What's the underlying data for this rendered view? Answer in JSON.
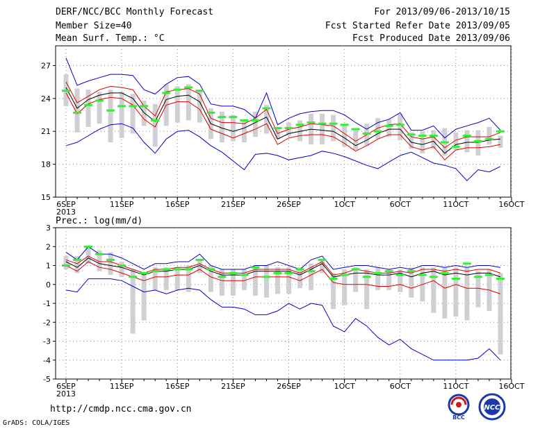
{
  "header": {
    "title": "DERF/NCC/BCC Monthly Forecast",
    "member_size": "Member Size=40",
    "variable1": "Mean Surf. Temp.: °C",
    "period": "For 2013/09/06-2013/10/15",
    "started": "Fcst Started Refer Date 2013/09/05",
    "produced": "Fcst Produced Date 2013/09/06"
  },
  "footer": {
    "url": "http://cmdp.ncc.cma.gov.cn",
    "credit": "GrADS: COLA/IGES",
    "logo1_text": "BCC",
    "logo2_text": "NCC"
  },
  "colors": {
    "envelope": "#0000cc",
    "spread": "#dd0000",
    "mean": "#000000",
    "member_box": "#d0d0d4",
    "marker": "#33ee33"
  },
  "chart_data": [
    {
      "type": "line",
      "title": "Mean Surf. Temp.: °C",
      "year_label": "2013",
      "x_tick_labels": [
        "6SEP",
        "11SEP",
        "16SEP",
        "21SEP",
        "26SEP",
        "1OCT",
        "6OCT",
        "11OCT",
        "16OCT"
      ],
      "y_ticks": [
        15,
        18,
        21,
        24,
        27
      ],
      "ylim": [
        15,
        28.8
      ],
      "days": 40,
      "series": [
        {
          "name": "upper envelope",
          "values": [
            27.7,
            25.2,
            25.6,
            25.9,
            26.2,
            26.2,
            26.1,
            24.8,
            24.4,
            25.3,
            25.9,
            26.0,
            25.3,
            23.5,
            23.3,
            23.3,
            23.0,
            22.2,
            24.5,
            21.6,
            22.2,
            22.6,
            22.8,
            22.9,
            22.9,
            22.5,
            21.8,
            21.2,
            21.8,
            22.1,
            22.7,
            21.1,
            21.1,
            21.5,
            20.4,
            21.2,
            21.5,
            21.8,
            22.2,
            21.1
          ]
        },
        {
          "name": "upper spread",
          "values": [
            25.5,
            23.6,
            24.2,
            24.8,
            25.1,
            25.0,
            24.8,
            23.3,
            22.4,
            24.6,
            24.8,
            24.9,
            24.4,
            22.2,
            21.8,
            21.8,
            21.7,
            22.2,
            23.0,
            20.8,
            21.2,
            21.4,
            21.7,
            21.6,
            21.5,
            20.8,
            20.1,
            20.7,
            21.3,
            21.6,
            21.7,
            20.5,
            20.3,
            20.5,
            19.5,
            20.2,
            20.5,
            20.5,
            20.5,
            20.9
          ]
        },
        {
          "name": "ensemble mean",
          "values": [
            25.0,
            23.1,
            23.9,
            24.3,
            24.5,
            24.5,
            24.0,
            22.7,
            21.9,
            23.9,
            24.2,
            24.3,
            23.7,
            21.7,
            21.3,
            21.0,
            21.3,
            21.8,
            22.3,
            20.3,
            20.8,
            21.0,
            21.2,
            21.1,
            21.0,
            20.4,
            19.7,
            20.2,
            20.8,
            21.2,
            21.2,
            20.0,
            19.8,
            20.1,
            19.0,
            19.8,
            20.0,
            20.0,
            20.2,
            20.3
          ]
        },
        {
          "name": "lower spread",
          "values": [
            24.5,
            22.6,
            23.5,
            23.9,
            24.1,
            24.0,
            23.4,
            22.1,
            21.4,
            23.4,
            23.7,
            23.7,
            23.0,
            21.2,
            20.8,
            20.4,
            20.8,
            21.2,
            21.7,
            19.8,
            20.4,
            20.6,
            20.7,
            20.7,
            20.5,
            19.9,
            19.2,
            19.7,
            20.3,
            20.7,
            20.7,
            19.6,
            19.3,
            19.6,
            18.4,
            19.3,
            19.5,
            19.5,
            19.6,
            19.8
          ]
        },
        {
          "name": "lower envelope",
          "values": [
            19.7,
            20.0,
            20.6,
            21.2,
            21.6,
            21.7,
            21.3,
            20.0,
            19.0,
            20.3,
            21.0,
            21.1,
            20.5,
            19.7,
            19.1,
            18.3,
            17.5,
            18.9,
            19.0,
            18.8,
            18.4,
            18.6,
            18.8,
            19.2,
            19.0,
            18.7,
            18.3,
            17.9,
            17.6,
            18.2,
            18.8,
            19.1,
            18.6,
            18.1,
            17.9,
            17.6,
            16.5,
            17.5,
            17.3,
            17.8
          ]
        },
        {
          "name": "ensemble markers",
          "values": [
            24.7,
            22.7,
            23.4,
            23.8,
            22.9,
            23.3,
            23.3,
            23.3,
            22.0,
            24.5,
            24.8,
            25.0,
            24.7,
            22.7,
            22.3,
            22.3,
            22.0,
            22.0,
            23.1,
            21.3,
            21.3,
            21.6,
            21.8,
            21.7,
            21.7,
            21.6,
            21.2,
            20.8,
            21.0,
            21.5,
            21.6,
            20.7,
            20.6,
            20.6,
            20.0,
            19.6,
            20.6,
            20.1,
            20.3,
            21.0
          ]
        }
      ],
      "box_ranges": [
        [
          23.3,
          26.2
        ],
        [
          20.9,
          24.9
        ],
        [
          21.4,
          24.8
        ],
        [
          21.7,
          24.6
        ],
        [
          20.0,
          24.8
        ],
        [
          20.4,
          24.6
        ],
        [
          20.8,
          24.4
        ],
        [
          21.5,
          23.8
        ],
        [
          19.6,
          23.5
        ],
        [
          21.5,
          25.3
        ],
        [
          21.8,
          25.1
        ],
        [
          22.0,
          25.3
        ],
        [
          21.8,
          24.8
        ],
        [
          20.3,
          23.1
        ],
        [
          20.0,
          22.8
        ],
        [
          20.1,
          22.5
        ],
        [
          20.0,
          22.0
        ],
        [
          20.5,
          22.8
        ],
        [
          20.8,
          23.4
        ],
        [
          20.3,
          21.3
        ],
        [
          20.6,
          21.8
        ],
        [
          20.1,
          22.0
        ],
        [
          19.8,
          22.6
        ],
        [
          19.8,
          22.6
        ],
        [
          20.1,
          22.5
        ],
        [
          19.6,
          21.6
        ],
        [
          19.3,
          21.1
        ],
        [
          19.7,
          21.7
        ],
        [
          20.3,
          22.2
        ],
        [
          20.5,
          22.1
        ],
        [
          20.2,
          22.6
        ],
        [
          19.4,
          20.9
        ],
        [
          19.0,
          21.0
        ],
        [
          19.4,
          21.1
        ],
        [
          18.8,
          21.3
        ],
        [
          19.3,
          20.9
        ],
        [
          19.1,
          21.1
        ],
        [
          18.8,
          21.1
        ],
        [
          19.8,
          21.4
        ],
        [
          19.5,
          20.6
        ]
      ]
    },
    {
      "type": "line",
      "title": "Prec.: log(mm/d)",
      "year_label": "2013",
      "x_tick_labels": [
        "6SEP",
        "11SEP",
        "16SEP",
        "21SEP",
        "26SEP",
        "1OCT",
        "6OCT",
        "11OCT",
        "16OCT"
      ],
      "y_ticks": [
        -5,
        -4,
        -3,
        -2,
        -1,
        0,
        1,
        2,
        3
      ],
      "ylim": [
        -5,
        3
      ],
      "days": 40,
      "series": [
        {
          "name": "upper envelope",
          "values": [
            1.7,
            1.3,
            2.0,
            1.6,
            1.6,
            1.4,
            1.1,
            0.8,
            1.1,
            1.1,
            1.2,
            1.2,
            1.6,
            1.0,
            0.8,
            0.8,
            0.8,
            1.0,
            1.0,
            1.2,
            1.0,
            0.8,
            1.3,
            1.5,
            0.8,
            0.9,
            1.0,
            1.0,
            0.9,
            0.8,
            0.9,
            0.8,
            1.0,
            1.0,
            0.9,
            1.0,
            0.9,
            1.0,
            1.0,
            0.9
          ]
        },
        {
          "name": "upper spread",
          "values": [
            1.3,
            1.1,
            1.5,
            1.2,
            1.2,
            1.0,
            0.8,
            0.6,
            0.8,
            0.8,
            0.9,
            0.9,
            1.1,
            0.8,
            0.6,
            0.6,
            0.6,
            0.8,
            0.8,
            0.8,
            0.8,
            0.6,
            0.9,
            1.2,
            0.5,
            0.6,
            0.8,
            0.7,
            0.6,
            0.6,
            0.7,
            0.6,
            0.8,
            0.8,
            0.7,
            0.8,
            0.7,
            0.8,
            0.8,
            0.6
          ]
        },
        {
          "name": "ensemble mean",
          "values": [
            1.2,
            0.9,
            1.4,
            1.1,
            1.0,
            0.9,
            0.7,
            0.5,
            0.7,
            0.7,
            0.8,
            0.8,
            1.0,
            0.7,
            0.5,
            0.5,
            0.5,
            0.7,
            0.7,
            0.7,
            0.7,
            0.5,
            0.8,
            1.1,
            0.4,
            0.5,
            0.6,
            0.6,
            0.5,
            0.5,
            0.6,
            0.4,
            0.6,
            0.7,
            0.5,
            0.6,
            0.5,
            0.6,
            0.6,
            0.4
          ]
        },
        {
          "name": "lower spread",
          "values": [
            1.0,
            0.7,
            1.2,
            0.9,
            0.8,
            0.6,
            0.4,
            0.2,
            0.4,
            0.4,
            0.5,
            0.5,
            0.8,
            0.4,
            0.2,
            0.2,
            0.2,
            0.4,
            0.4,
            0.4,
            0.4,
            0.2,
            0.5,
            0.8,
            0.1,
            0.0,
            0.0,
            0.0,
            -0.1,
            -0.1,
            0.0,
            -0.2,
            0.0,
            0.2,
            -0.2,
            0.0,
            -0.2,
            -0.2,
            -0.3,
            -0.5
          ]
        },
        {
          "name": "lower envelope",
          "values": [
            -0.3,
            -0.4,
            0.3,
            0.3,
            0.3,
            0.2,
            -0.1,
            -0.4,
            -0.3,
            -0.5,
            -0.3,
            -0.2,
            -0.3,
            -0.8,
            -1.2,
            -1.2,
            -1.3,
            -1.6,
            -1.6,
            -1.4,
            -1.0,
            -1.3,
            -1.0,
            -1.1,
            -2.2,
            -2.5,
            -1.8,
            -2.2,
            -2.8,
            -3.2,
            -2.9,
            -3.4,
            -3.7,
            -4.0,
            -4.0,
            -4.0,
            -4.0,
            -3.9,
            -3.4,
            -4.0
          ]
        },
        {
          "name": "ensemble markers",
          "values": [
            1.0,
            1.3,
            2.0,
            1.6,
            1.3,
            1.0,
            0.4,
            0.6,
            0.7,
            0.8,
            0.8,
            0.8,
            1.3,
            0.8,
            0.4,
            0.6,
            0.5,
            0.9,
            0.4,
            0.6,
            0.6,
            0.8,
            0.7,
            1.3,
            0.3,
            0.5,
            0.8,
            0.4,
            0.6,
            0.7,
            0.5,
            0.7,
            0.5,
            0.4,
            0.6,
            0.3,
            1.1,
            0.4,
            0.5,
            0.3
          ]
        }
      ],
      "box_ranges": [
        [
          0.8,
          1.5
        ],
        [
          0.6,
          1.5
        ],
        [
          1.1,
          2.0
        ],
        [
          0.7,
          1.8
        ],
        [
          0.5,
          1.7
        ],
        [
          0.4,
          1.2
        ],
        [
          -2.6,
          0.8
        ],
        [
          -1.9,
          0.5
        ],
        [
          -0.3,
          0.9
        ],
        [
          -0.3,
          0.9
        ],
        [
          -0.3,
          0.9
        ],
        [
          -0.4,
          1.0
        ],
        [
          0.6,
          1.3
        ],
        [
          -0.4,
          1.0
        ],
        [
          -0.6,
          0.8
        ],
        [
          -0.6,
          0.8
        ],
        [
          -0.3,
          0.8
        ],
        [
          -0.6,
          1.0
        ],
        [
          -0.7,
          1.0
        ],
        [
          -0.5,
          0.9
        ],
        [
          -0.5,
          0.9
        ],
        [
          -0.2,
          0.9
        ],
        [
          -0.3,
          1.1
        ],
        [
          0.6,
          1.3
        ],
        [
          -1.3,
          0.6
        ],
        [
          -1.1,
          0.8
        ],
        [
          -0.4,
          0.9
        ],
        [
          -1.3,
          0.8
        ],
        [
          -0.3,
          0.9
        ],
        [
          -0.3,
          0.8
        ],
        [
          -0.4,
          0.8
        ],
        [
          -0.7,
          0.9
        ],
        [
          -0.9,
          0.9
        ],
        [
          -1.5,
          0.9
        ],
        [
          -1.8,
          0.9
        ],
        [
          -1.7,
          0.9
        ],
        [
          -1.9,
          0.9
        ],
        [
          -1.2,
          0.7
        ],
        [
          -1.4,
          0.8
        ],
        [
          -3.7,
          0.6
        ]
      ]
    }
  ]
}
